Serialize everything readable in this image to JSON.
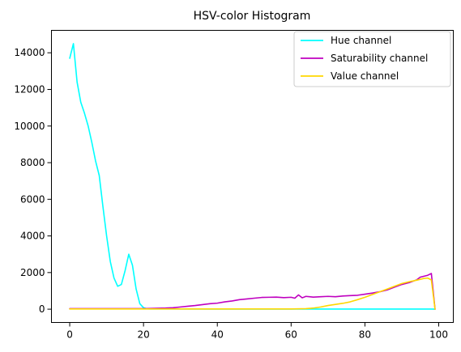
{
  "chart_data": {
    "type": "line",
    "title": "HSV-color Histogram",
    "xlabel": "",
    "ylabel": "",
    "xlim": [
      -4.95,
      103.95
    ],
    "ylim": [
      -725,
      15225
    ],
    "x_ticks": [
      0,
      20,
      40,
      60,
      80,
      100
    ],
    "y_ticks": [
      0,
      2000,
      4000,
      6000,
      8000,
      10000,
      12000,
      14000
    ],
    "x_tick_labels": [
      "0",
      "20",
      "40",
      "60",
      "80",
      "100"
    ],
    "y_tick_labels": [
      "0",
      "2000",
      "4000",
      "6000",
      "8000",
      "10000",
      "12000",
      "14000"
    ],
    "grid": false,
    "legend_position": "top-right",
    "series": [
      {
        "name": "Hue channel",
        "color": "#00ffff",
        "points": [
          [
            0,
            13700
          ],
          [
            1,
            14500
          ],
          [
            2,
            12400
          ],
          [
            3,
            11300
          ],
          [
            4,
            10700
          ],
          [
            5,
            10000
          ],
          [
            6,
            9100
          ],
          [
            7,
            8100
          ],
          [
            8,
            7300
          ],
          [
            9,
            5600
          ],
          [
            10,
            4000
          ],
          [
            11,
            2600
          ],
          [
            12,
            1700
          ],
          [
            13,
            1250
          ],
          [
            14,
            1350
          ],
          [
            15,
            2100
          ],
          [
            16,
            3000
          ],
          [
            17,
            2400
          ],
          [
            18,
            1100
          ],
          [
            19,
            300
          ],
          [
            20,
            80
          ],
          [
            21,
            20
          ],
          [
            22,
            10
          ],
          [
            30,
            10
          ],
          [
            40,
            8
          ],
          [
            50,
            8
          ],
          [
            60,
            8
          ],
          [
            70,
            8
          ],
          [
            80,
            8
          ],
          [
            90,
            8
          ],
          [
            98,
            8
          ],
          [
            99,
            0
          ]
        ]
      },
      {
        "name": "Saturability channel",
        "color": "#bf00bf",
        "points": [
          [
            0,
            30
          ],
          [
            20,
            30
          ],
          [
            22,
            40
          ],
          [
            24,
            50
          ],
          [
            26,
            60
          ],
          [
            28,
            80
          ],
          [
            30,
            120
          ],
          [
            32,
            160
          ],
          [
            34,
            200
          ],
          [
            36,
            250
          ],
          [
            38,
            300
          ],
          [
            40,
            330
          ],
          [
            42,
            400
          ],
          [
            44,
            450
          ],
          [
            46,
            520
          ],
          [
            48,
            560
          ],
          [
            50,
            600
          ],
          [
            52,
            640
          ],
          [
            54,
            650
          ],
          [
            56,
            660
          ],
          [
            58,
            630
          ],
          [
            60,
            650
          ],
          [
            61,
            600
          ],
          [
            62,
            780
          ],
          [
            63,
            620
          ],
          [
            64,
            700
          ],
          [
            66,
            660
          ],
          [
            68,
            680
          ],
          [
            70,
            700
          ],
          [
            72,
            680
          ],
          [
            74,
            720
          ],
          [
            76,
            740
          ],
          [
            78,
            760
          ],
          [
            80,
            820
          ],
          [
            82,
            880
          ],
          [
            84,
            950
          ],
          [
            86,
            1050
          ],
          [
            88,
            1200
          ],
          [
            90,
            1350
          ],
          [
            92,
            1450
          ],
          [
            94,
            1600
          ],
          [
            95,
            1750
          ],
          [
            96,
            1800
          ],
          [
            97,
            1850
          ],
          [
            98,
            1950
          ],
          [
            99,
            0
          ]
        ]
      },
      {
        "name": "Value channel",
        "color": "#ffd700",
        "points": [
          [
            0,
            10
          ],
          [
            20,
            10
          ],
          [
            30,
            10
          ],
          [
            40,
            10
          ],
          [
            50,
            10
          ],
          [
            60,
            10
          ],
          [
            64,
            30
          ],
          [
            66,
            60
          ],
          [
            68,
            120
          ],
          [
            70,
            200
          ],
          [
            72,
            260
          ],
          [
            74,
            320
          ],
          [
            76,
            400
          ],
          [
            78,
            520
          ],
          [
            80,
            650
          ],
          [
            82,
            800
          ],
          [
            84,
            950
          ],
          [
            86,
            1100
          ],
          [
            88,
            1250
          ],
          [
            90,
            1400
          ],
          [
            92,
            1500
          ],
          [
            94,
            1580
          ],
          [
            96,
            1680
          ],
          [
            97,
            1700
          ],
          [
            98,
            1600
          ],
          [
            99,
            0
          ]
        ]
      }
    ]
  }
}
